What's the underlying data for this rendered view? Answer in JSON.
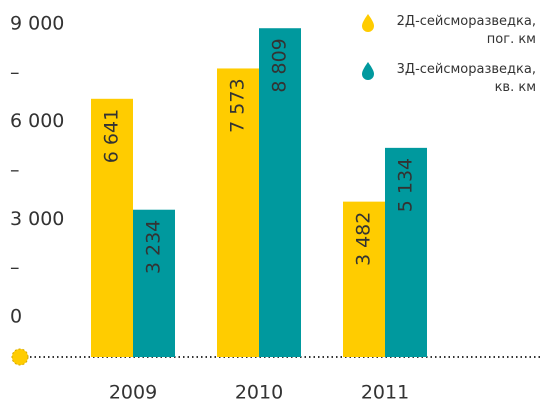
{
  "chart_data": {
    "type": "bar",
    "categories": [
      "2009",
      "2010",
      "2011"
    ],
    "series": [
      {
        "name": "2Д-сейсморазведка, пог. км",
        "color": "#ffcc00",
        "values": [
          6641,
          7573,
          3482
        ],
        "value_labels": [
          "6 641",
          "7 573",
          "3 482"
        ]
      },
      {
        "name": "3Д-сейсморазведка, кв. км",
        "color": "#00999e",
        "values": [
          3234,
          8809,
          5134
        ],
        "value_labels": [
          "3 234",
          "8 809",
          "5 134"
        ]
      }
    ],
    "ylim": [
      0,
      9000
    ],
    "yticks": [
      {
        "value": 0,
        "label": "0"
      },
      {
        "value": 1500,
        "label": "–"
      },
      {
        "value": 3000,
        "label": "3 000"
      },
      {
        "value": 4500,
        "label": "–"
      },
      {
        "value": 6000,
        "label": "6 000"
      },
      {
        "value": 7500,
        "label": "–"
      },
      {
        "value": 9000,
        "label": "9 000"
      }
    ],
    "legend": "top-right"
  }
}
